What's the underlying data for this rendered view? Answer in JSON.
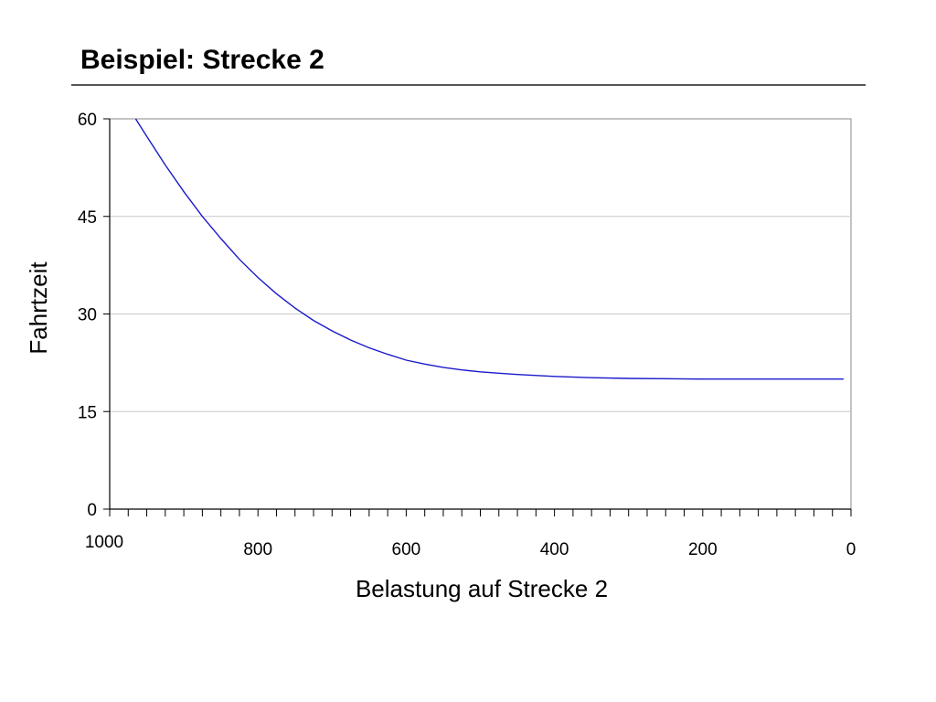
{
  "slide": {
    "title": "Beispiel: Strecke 2"
  },
  "chart_data": {
    "type": "line",
    "title": "",
    "xlabel": "Belastung auf Strecke 2",
    "ylabel": "Fahrtzeit",
    "xlim": [
      1000,
      0
    ],
    "ylim": [
      0,
      60
    ],
    "x_reversed": true,
    "xticks": [
      1000,
      800,
      600,
      400,
      200,
      0
    ],
    "yticks": [
      0,
      15,
      30,
      45,
      60
    ],
    "grid": "horizontal",
    "series": [
      {
        "color": "#1a1acc",
        "x": [
          965,
          950,
          925,
          900,
          875,
          850,
          825,
          800,
          775,
          750,
          725,
          700,
          675,
          650,
          625,
          600,
          575,
          550,
          525,
          500,
          475,
          450,
          400,
          350,
          300,
          250,
          200,
          150,
          100,
          50,
          10
        ],
        "y": [
          60.0,
          57.3,
          52.9,
          48.8,
          45.0,
          41.6,
          38.4,
          35.6,
          33.1,
          30.9,
          29.0,
          27.4,
          26.0,
          24.8,
          23.8,
          22.9,
          22.3,
          21.8,
          21.4,
          21.1,
          20.9,
          20.7,
          20.4,
          20.2,
          20.1,
          20.05,
          20.0,
          20.0,
          20.0,
          20.0,
          20.0
        ]
      }
    ]
  }
}
